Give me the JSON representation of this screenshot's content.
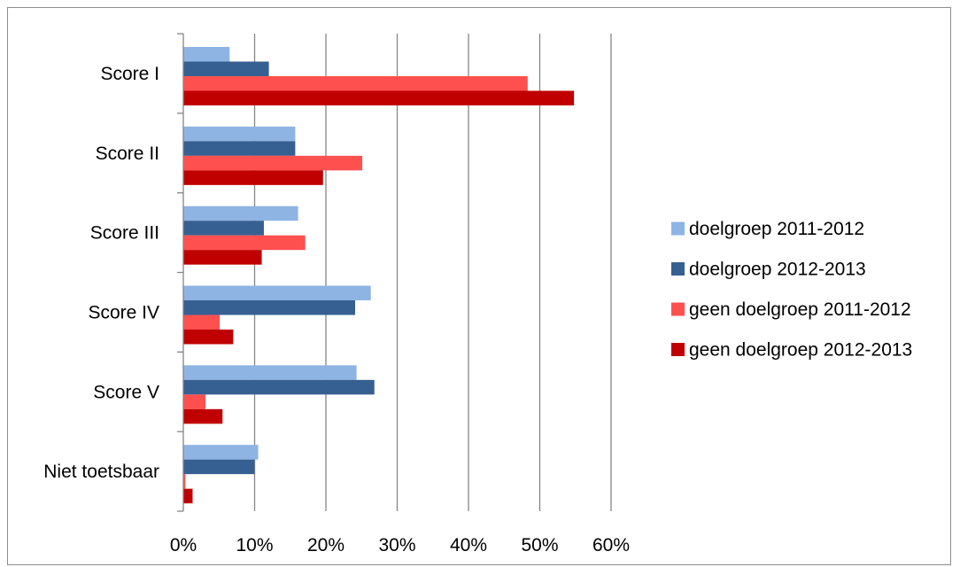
{
  "chart_data": {
    "type": "bar",
    "orientation": "horizontal",
    "categories": [
      "Score I",
      "Score II",
      "Score III",
      "Score IV",
      "Score V",
      "Niet toetsbaar"
    ],
    "series": [
      {
        "name": "doelgroep 2011-2012",
        "color": "#8eb4e3",
        "values": [
          6.5,
          15.7,
          16.1,
          26.3,
          24.3,
          10.5
        ]
      },
      {
        "name": "doelgroep 2012-2013",
        "color": "#376092",
        "values": [
          12.0,
          15.7,
          11.3,
          24.1,
          26.8,
          10.0
        ]
      },
      {
        "name": "geen doelgroep 2011-2012",
        "color": "#ff5050",
        "values": [
          48.3,
          25.1,
          17.1,
          5.1,
          3.1,
          0.3
        ]
      },
      {
        "name": "geen doelgroep 2012-2013",
        "color": "#c00000",
        "values": [
          54.8,
          19.6,
          11.0,
          7.0,
          5.5,
          1.3
        ]
      }
    ],
    "xlim": [
      0,
      60
    ],
    "xticks": [
      "0%",
      "10%",
      "20%",
      "30%",
      "40%",
      "50%",
      "60%"
    ],
    "grid": "vertical",
    "legend": "right",
    "title": "",
    "xlabel": "",
    "ylabel": ""
  }
}
